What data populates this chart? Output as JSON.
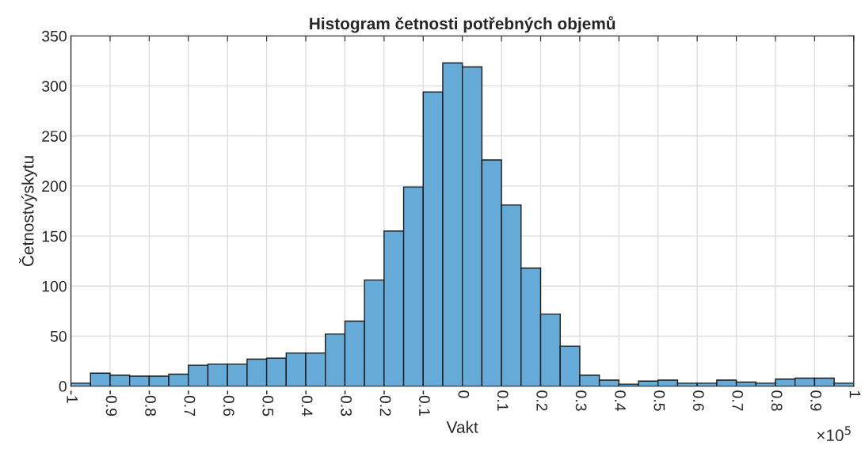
{
  "chart_data": {
    "type": "histogram",
    "title": "Histogram četnosti potřebných objemů",
    "xlabel": "Vakt",
    "ylabel": "Četnostvýskytu",
    "annotations": [
      "×10$^{5}$"
    ],
    "bins": [
      -1,
      -0.95,
      -0.9,
      -0.85,
      -0.8,
      -0.75,
      -0.7,
      -0.65,
      -0.6,
      -0.55,
      -0.5,
      -0.45,
      -0.4,
      -0.35,
      -0.3,
      -0.25,
      -0.2,
      -0.15,
      -0.1,
      -0.05,
      0,
      0.05,
      0.1,
      0.15,
      0.2,
      0.25,
      0.3,
      0.35,
      0.4,
      0.45,
      0.5,
      0.55,
      0.6,
      0.65,
      0.7,
      0.75,
      0.8,
      0.85,
      0.9,
      0.95,
      1
    ],
    "values": [
      3,
      13,
      11,
      10,
      10,
      12,
      21,
      22,
      22,
      27,
      28,
      33,
      33,
      52,
      65,
      106,
      155,
      199,
      294,
      323,
      319,
      226,
      181,
      118,
      72,
      40,
      11,
      6,
      2,
      5,
      6,
      3,
      3,
      6,
      4,
      3,
      7,
      8,
      8,
      3
    ],
    "color": "#66aad7",
    "xlim": [
      -1,
      1
    ],
    "xticks": [
      -1,
      -0.9,
      -0.8,
      -0.7,
      -0.6,
      -0.5,
      -0.4,
      -0.3,
      -0.2,
      -0.1,
      0,
      0.1,
      0.2,
      0.3,
      0.4,
      0.5,
      0.6,
      0.7,
      0.8,
      0.9,
      1
    ],
    "ylim": [
      0,
      350
    ],
    "yticks": [
      0,
      50,
      100,
      150,
      200,
      250,
      300,
      350
    ],
    "grid": true
  }
}
